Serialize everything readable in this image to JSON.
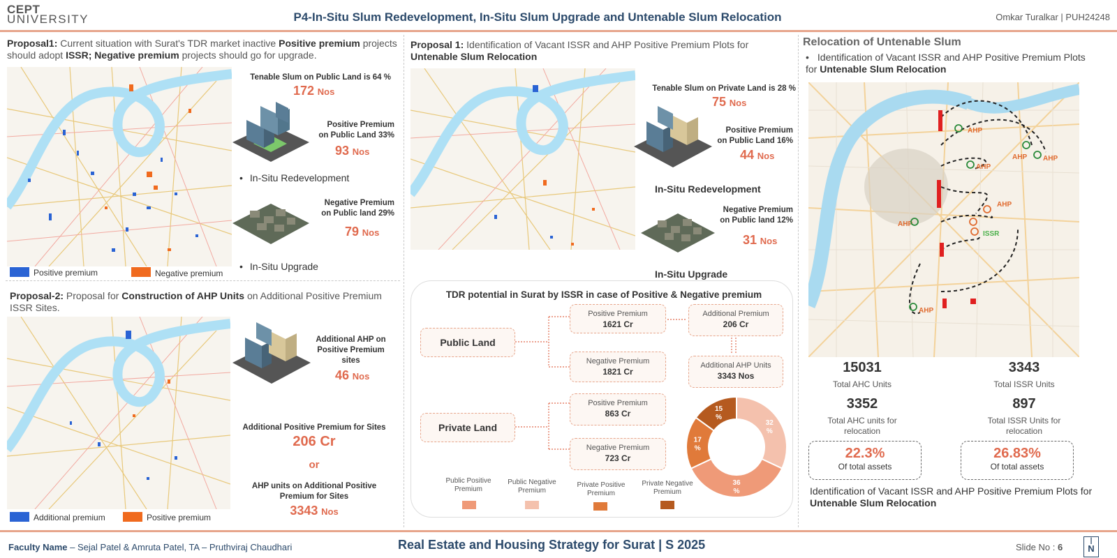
{
  "header": {
    "logo_line1": "CEPT",
    "logo_line2": "UNIVERSITY",
    "title": "P4-In-Situ Slum Redevelopment, In-Situ Slum Upgrade and Untenable Slum Relocation",
    "author": "Omkar Turalkar | PUH24248"
  },
  "left": {
    "proposal1": {
      "label": "Proposal1:",
      "text_a": " Current situation with Surat's TDR market inactive ",
      "bold_b": "Positive premium",
      "text_c": " projects should adopt ",
      "bold_d": "ISSR; Negative premium",
      "text_e": " projects should go for upgrade."
    },
    "stats": {
      "tenable_label": "Tenable Slum on Public Land is 64 %",
      "tenable_value": "172",
      "positive_label_1": "Positive Premium",
      "positive_label_2": "on Public Land 33%",
      "positive_value": "93",
      "bullet_1": "In-Situ Redevelopment",
      "negative_label_1": "Negative Premium",
      "negative_label_2": "on Public land 29%",
      "negative_value": "79",
      "bullet_2": "In-Situ Upgrade",
      "unit": "Nos"
    },
    "legend1": {
      "positive": "Positive premium",
      "negative": "Negative premium"
    },
    "proposal2": {
      "label": "Proposal-2:",
      "text_a": " Proposal for ",
      "bold_b": "Construction of AHP Units",
      "text_c": " on Additional Positive Premium ISSR Sites."
    },
    "stats2": {
      "ahp_label_1": "Additional AHP  on",
      "ahp_label_2": "Positive Premium",
      "ahp_label_3": "sites",
      "ahp_value": "46",
      "add_pos_label": "Additional Positive Premium for Sites",
      "add_pos_value": "206 Cr",
      "or_text": "or",
      "ahp_units_label_1": "AHP units on Additional Positive",
      "ahp_units_label_2": "Premium for Sites",
      "ahp_units_value": "3343",
      "unit": "Nos"
    },
    "legend2": {
      "additional": "Additional premium",
      "positive": "Positive premium"
    }
  },
  "middle": {
    "proposal": {
      "label": "Proposal 1:",
      "text_a": " Identification of Vacant ISSR and AHP Positive Premium Plots for ",
      "bold_b": "Untenable Slum Relocation"
    },
    "stats": {
      "tenable_label": "Tenable Slum on Private Land is 28 %",
      "tenable_value": "75",
      "positive_label_1": "Positive Premium",
      "positive_label_2": "on Public Land 16%",
      "positive_value": "44",
      "redev_title": "In-Situ Redevelopment",
      "negative_label_1": "Negative Premium",
      "negative_label_2": "on Public land 12%",
      "negative_value": "31",
      "upgrade_title": "In-Situ Upgrade",
      "unit": "Nos"
    },
    "tdr": {
      "title": "TDR potential in Surat by ISSR in case of Positive & Negative premium",
      "public_land": "Public Land",
      "private_land": "Private Land",
      "pub_pos_label": "Positive Premium",
      "pub_pos_value": "1621 Cr",
      "pub_neg_label": "Negative Premium",
      "pub_neg_value": "1821 Cr",
      "add_prem_label": "Additional Premium",
      "add_prem_value": "206 Cr",
      "add_ahp_label": "Additional AHP Units",
      "add_ahp_value": "3343 Nos",
      "priv_pos_label": "Positive Premium",
      "priv_pos_value": "863 Cr",
      "priv_neg_label": "Negative Premium",
      "priv_neg_value": "723 Cr",
      "legend": [
        {
          "line1": "Public Positive",
          "line2": "Premium",
          "color": "#ef9a78"
        },
        {
          "line1": "Public Negative",
          "line2": "Premium",
          "color": "#f4c1ad"
        },
        {
          "line1": "Private  Positive",
          "line2": "Premium",
          "color": "#e07a3a"
        },
        {
          "line1": "Private Negative",
          "line2": "Premium",
          "color": "#b55a1f"
        }
      ],
      "donut": {
        "slices": [
          {
            "label": "32 %",
            "value": 32,
            "color": "#f4c1ad"
          },
          {
            "label": "36 %",
            "value": 36,
            "color": "#ef9a78"
          },
          {
            "label": "17 %",
            "value": 17,
            "color": "#e07a3a"
          },
          {
            "label": "15 %",
            "value": 15,
            "color": "#b55a1f"
          }
        ]
      }
    }
  },
  "right": {
    "title": "Relocation of Untenable Slum",
    "bullet_a": "Identification of Vacant ISSR and AHP Positive Premium Plots for ",
    "bullet_b": "Untenable Slum Relocation",
    "map_labels": {
      "ahp": "AHP",
      "issr": "ISSR"
    },
    "total_ahc": "15031",
    "total_ahc_label": "Total AHC Units",
    "total_issr": "3343",
    "total_issr_label": "Total ISSR Units",
    "ahc_reloc": "3352",
    "ahc_reloc_label_1": "Total AHC units for",
    "ahc_reloc_label_2": "relocation",
    "issr_reloc": "897",
    "issr_reloc_label_1": "Total ISSR Units for",
    "issr_reloc_label_2": "relocation",
    "pct_ahc": "22.3%",
    "pct_issr": "26.83%",
    "pct_label": "Of total assets",
    "footer_a": "Identification of Vacant ISSR and AHP Positive Premium Plots for ",
    "footer_b": "Untenable Slum Relocation"
  },
  "footer": {
    "faculty_label": "Faculty Name",
    "faculty_names": "  –  Sejal Patel & Amruta Patel, TA – Pruthviraj Chaudhari",
    "center": "Real Estate and Housing Strategy for Surat | S 2025",
    "slide_label": "Slide No : ",
    "slide_no": "6",
    "north": "N"
  }
}
